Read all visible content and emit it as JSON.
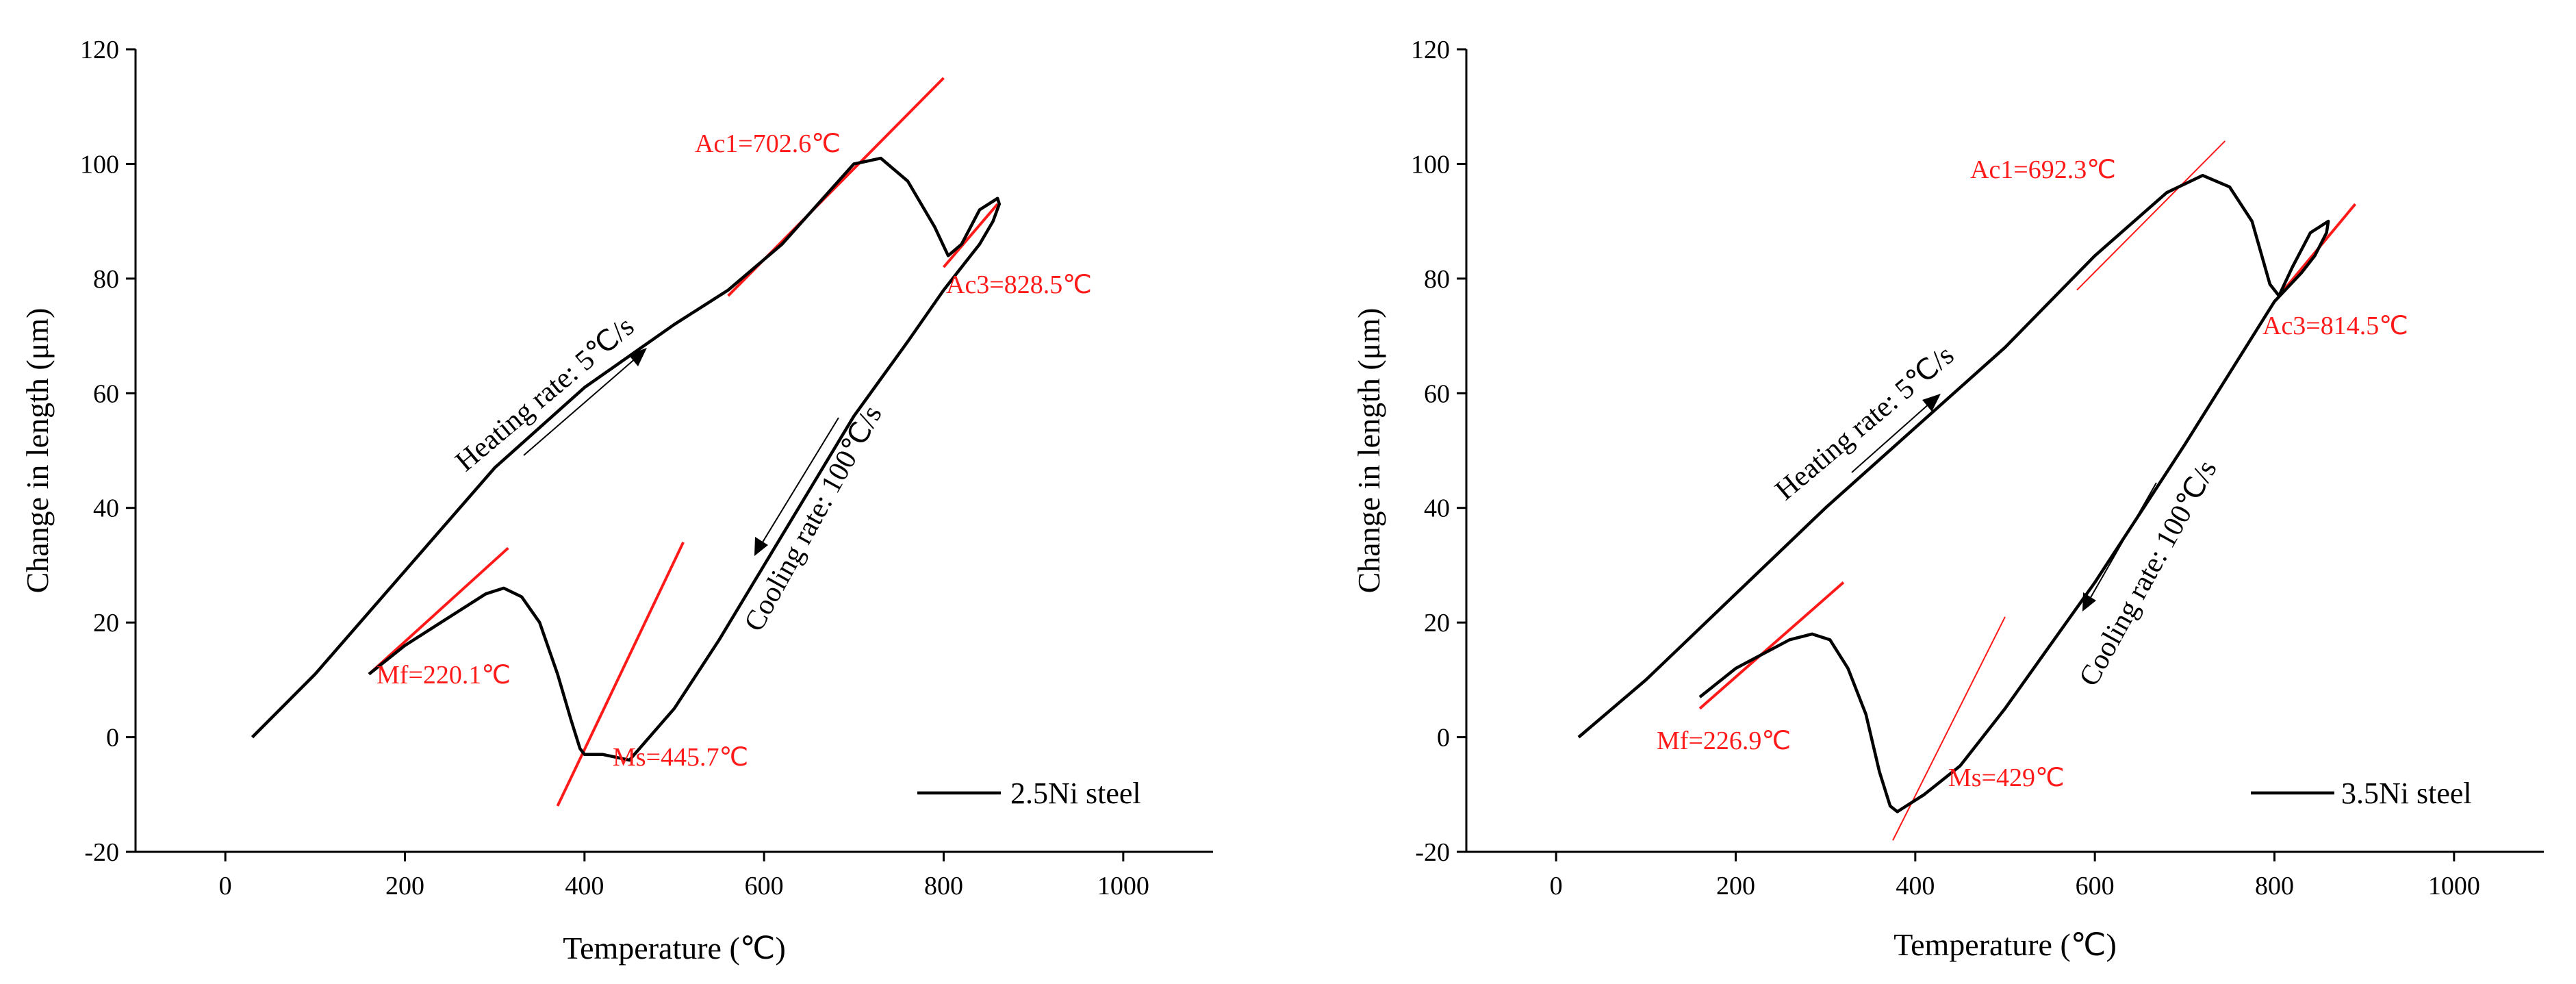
{
  "chart_data": [
    {
      "type": "line",
      "xlabel": "Temperature (℃)",
      "ylabel": "Change in length (μm)",
      "xlim": [
        -100,
        1100
      ],
      "ylim": [
        -20,
        120
      ],
      "xticks": [
        0,
        200,
        400,
        600,
        800,
        1000
      ],
      "yticks": [
        -20,
        0,
        20,
        40,
        60,
        80,
        100,
        120
      ],
      "legend": "2.5Ni steel",
      "legend_position": "bottom-right",
      "series": [
        {
          "name": "2.5Ni steel",
          "x": [
            30,
            100,
            200,
            300,
            400,
            500,
            560,
            620,
            700,
            730,
            760,
            790,
            805,
            820,
            840,
            860,
            862,
            855,
            840,
            820,
            800,
            760,
            700,
            650,
            600,
            550,
            500,
            450,
            420,
            400,
            395,
            385,
            370,
            350,
            330,
            310,
            290,
            260,
            200,
            160
          ],
          "y": [
            0,
            11,
            29,
            47,
            61,
            72,
            78,
            86,
            100,
            101,
            97,
            89,
            84,
            86,
            92,
            94,
            93,
            90,
            86,
            82,
            78,
            69,
            56,
            43,
            30,
            17,
            5,
            -4,
            -3,
            -3,
            -2,
            3,
            11,
            20,
            24.5,
            26,
            25,
            22,
            16,
            11
          ]
        }
      ],
      "tangents": [
        {
          "label": "Ac1",
          "x": [
            560,
            800
          ],
          "y": [
            77,
            115
          ]
        },
        {
          "label": "Ac3",
          "x": [
            800,
            860
          ],
          "y": [
            82,
            93
          ]
        },
        {
          "label": "Mf",
          "x": [
            160,
            315
          ],
          "y": [
            11,
            33
          ]
        },
        {
          "label": "Ms",
          "x": [
            370,
            510
          ],
          "y": [
            -12,
            34
          ]
        }
      ],
      "annotations": {
        "ac1": "Ac1=702.6℃",
        "ac3": "Ac3=828.5℃",
        "mf": "Mf=220.1℃",
        "ms": "Ms=445.7℃",
        "heating": "Heating rate: 5℃/s",
        "cooling": "Cooling rate: 100℃/s"
      }
    },
    {
      "type": "line",
      "xlabel": "Temperature (℃)",
      "ylabel": "Change in length (μm)",
      "xlim": [
        -100,
        1100
      ],
      "ylim": [
        -20,
        120
      ],
      "xticks": [
        0,
        200,
        400,
        600,
        800,
        1000
      ],
      "yticks": [
        -20,
        0,
        20,
        40,
        60,
        80,
        100,
        120
      ],
      "legend": "3.5Ni steel",
      "legend_position": "bottom-right",
      "series": [
        {
          "name": "3.5Ni steel",
          "x": [
            25,
            100,
            200,
            300,
            400,
            500,
            600,
            680,
            720,
            750,
            775,
            795,
            805,
            820,
            840,
            860,
            858,
            845,
            830,
            800,
            760,
            700,
            650,
            600,
            550,
            500,
            450,
            410,
            390,
            380,
            372,
            360,
            345,
            325,
            305,
            285,
            260,
            200,
            160
          ],
          "y": [
            0,
            10,
            25,
            40,
            54,
            68,
            84,
            95,
            98,
            96,
            90,
            79,
            77,
            82,
            88,
            90,
            88,
            84,
            81,
            76,
            66,
            51,
            39,
            27,
            16,
            5,
            -5,
            -10,
            -12,
            -13,
            -12,
            -6,
            4,
            12,
            17,
            18,
            17,
            12,
            7
          ]
        }
      ],
      "tangents": [
        {
          "label": "Ac1",
          "x": [
            580,
            745
          ],
          "y": [
            78,
            104
          ]
        },
        {
          "label": "Ac3",
          "x": [
            805,
            890
          ],
          "y": [
            77,
            93
          ]
        },
        {
          "label": "Mf",
          "x": [
            160,
            320
          ],
          "y": [
            5,
            27
          ]
        },
        {
          "label": "Ms",
          "x": [
            375,
            500
          ],
          "y": [
            -18,
            21
          ]
        }
      ],
      "annotations": {
        "ac1": "Ac1=692.3℃",
        "ac3": "Ac3=814.5℃",
        "mf": "Mf=226.9℃",
        "ms": "Ms=429℃",
        "heating": "Heating rate: 5℃/s",
        "cooling": "Cooling rate: 100℃/s"
      }
    }
  ]
}
